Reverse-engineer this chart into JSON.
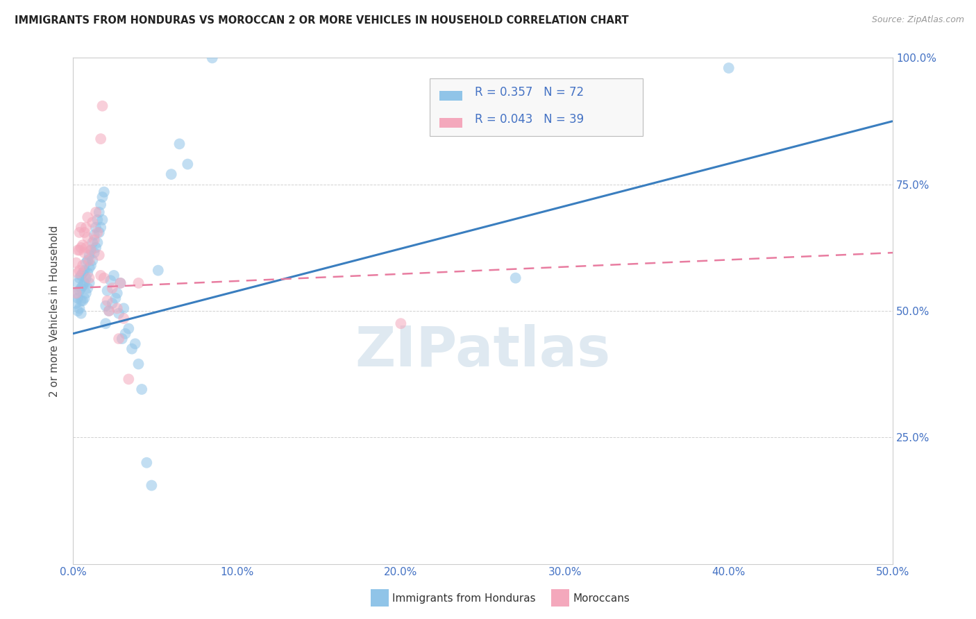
{
  "title": "IMMIGRANTS FROM HONDURAS VS MOROCCAN 2 OR MORE VEHICLES IN HOUSEHOLD CORRELATION CHART",
  "source": "Source: ZipAtlas.com",
  "ylabel": "2 or more Vehicles in Household",
  "xlim": [
    0.0,
    0.5
  ],
  "ylim": [
    0.0,
    1.0
  ],
  "xtick_labels": [
    "0.0%",
    "10.0%",
    "20.0%",
    "30.0%",
    "40.0%",
    "50.0%"
  ],
  "xtick_values": [
    0.0,
    0.1,
    0.2,
    0.3,
    0.4,
    0.5
  ],
  "ytick_values": [
    0.25,
    0.5,
    0.75,
    1.0
  ],
  "right_ytick_labels": [
    "25.0%",
    "50.0%",
    "75.0%",
    "100.0%"
  ],
  "right_ytick_values": [
    0.25,
    0.5,
    0.75,
    1.0
  ],
  "blue_R": 0.357,
  "blue_N": 72,
  "pink_R": 0.043,
  "pink_N": 39,
  "blue_color": "#90c4e8",
  "pink_color": "#f4a8bc",
  "blue_line_color": "#3a7ebf",
  "pink_line_color": "#e87ca0",
  "watermark": "ZIPatlas",
  "legend_bottom_blue": "Immigrants from Honduras",
  "legend_bottom_pink": "Moroccans",
  "blue_line_x0": 0.0,
  "blue_line_y0": 0.455,
  "blue_line_x1": 0.5,
  "blue_line_y1": 0.875,
  "pink_line_x0": 0.0,
  "pink_line_y0": 0.545,
  "pink_line_x1": 0.5,
  "pink_line_y1": 0.615,
  "blue_points_x": [
    0.002,
    0.002,
    0.003,
    0.003,
    0.003,
    0.004,
    0.004,
    0.004,
    0.005,
    0.005,
    0.005,
    0.005,
    0.006,
    0.006,
    0.006,
    0.007,
    0.007,
    0.007,
    0.008,
    0.008,
    0.008,
    0.009,
    0.009,
    0.009,
    0.01,
    0.01,
    0.01,
    0.011,
    0.011,
    0.012,
    0.012,
    0.013,
    0.013,
    0.014,
    0.014,
    0.015,
    0.015,
    0.016,
    0.016,
    0.017,
    0.017,
    0.018,
    0.018,
    0.019,
    0.02,
    0.02,
    0.021,
    0.022,
    0.023,
    0.024,
    0.025,
    0.026,
    0.027,
    0.028,
    0.029,
    0.03,
    0.031,
    0.032,
    0.034,
    0.036,
    0.038,
    0.04,
    0.042,
    0.045,
    0.048,
    0.052,
    0.06,
    0.065,
    0.07,
    0.085,
    0.27,
    0.4
  ],
  "blue_points_y": [
    0.535,
    0.515,
    0.555,
    0.525,
    0.5,
    0.565,
    0.54,
    0.505,
    0.57,
    0.545,
    0.52,
    0.495,
    0.575,
    0.55,
    0.52,
    0.58,
    0.555,
    0.525,
    0.595,
    0.565,
    0.535,
    0.6,
    0.575,
    0.545,
    0.61,
    0.585,
    0.555,
    0.62,
    0.59,
    0.635,
    0.6,
    0.65,
    0.615,
    0.665,
    0.625,
    0.68,
    0.635,
    0.695,
    0.655,
    0.71,
    0.665,
    0.725,
    0.68,
    0.735,
    0.51,
    0.475,
    0.54,
    0.5,
    0.56,
    0.515,
    0.57,
    0.525,
    0.535,
    0.495,
    0.555,
    0.445,
    0.505,
    0.455,
    0.465,
    0.425,
    0.435,
    0.395,
    0.345,
    0.2,
    0.155,
    0.58,
    0.77,
    0.83,
    0.79,
    1.0,
    0.565,
    0.98
  ],
  "pink_points_x": [
    0.002,
    0.002,
    0.003,
    0.003,
    0.004,
    0.004,
    0.004,
    0.005,
    0.005,
    0.006,
    0.006,
    0.007,
    0.007,
    0.008,
    0.008,
    0.009,
    0.009,
    0.01,
    0.01,
    0.011,
    0.012,
    0.013,
    0.014,
    0.015,
    0.016,
    0.017,
    0.019,
    0.021,
    0.024,
    0.027,
    0.029,
    0.031,
    0.034,
    0.017,
    0.04,
    0.022,
    0.018,
    0.028,
    0.2
  ],
  "pink_points_y": [
    0.535,
    0.595,
    0.62,
    0.575,
    0.655,
    0.62,
    0.58,
    0.665,
    0.625,
    0.63,
    0.59,
    0.655,
    0.615,
    0.665,
    0.625,
    0.685,
    0.645,
    0.6,
    0.565,
    0.62,
    0.675,
    0.64,
    0.695,
    0.655,
    0.61,
    0.57,
    0.565,
    0.52,
    0.545,
    0.505,
    0.555,
    0.485,
    0.365,
    0.84,
    0.555,
    0.5,
    0.905,
    0.445,
    0.475
  ]
}
